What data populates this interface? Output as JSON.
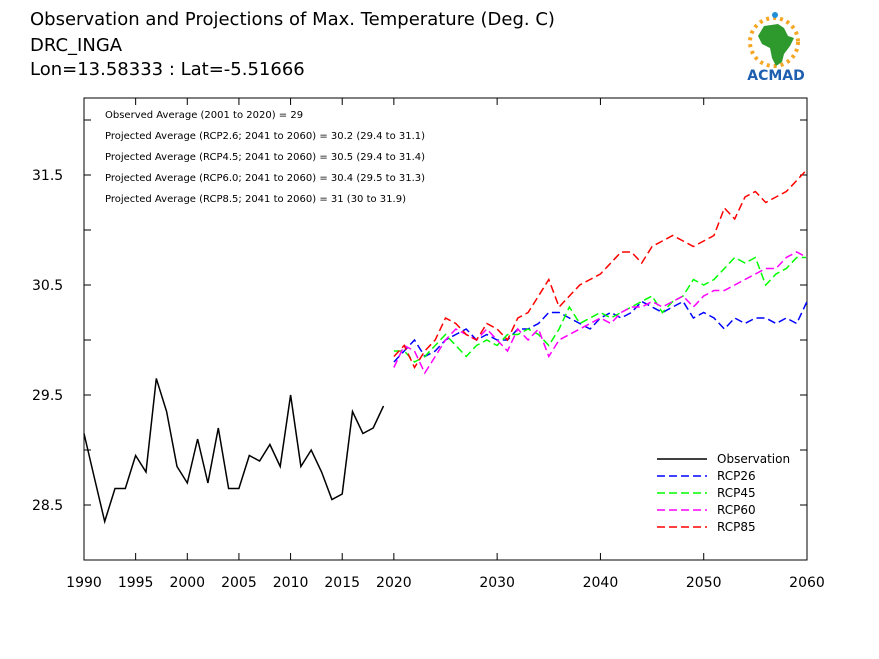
{
  "header": {
    "title": "Observation and Projections of Max. Temperature (Deg. C)",
    "station": "DRC_INGA",
    "coords": "Lon=13.58333 : Lat=-5.51666"
  },
  "logo": {
    "text": "ACMAD",
    "icon": "africa-map-sun-logo",
    "colors": {
      "land": "#2e9a2e",
      "sun": "#f5a623",
      "text": "#1f5fb0"
    }
  },
  "annotations": [
    "Observed Average (2001 to 2020) = 29",
    "Projected Average (RCP2.6; 2041 to 2060) = 30.2 (29.4 to 31.1)",
    "Projected Average (RCP4.5; 2041 to 2060) = 30.5 (29.4 to 31.4)",
    "Projected Average (RCP6.0; 2041 to 2060) = 30.4 (29.5 to 31.3)",
    "Projected Average (RCP8.5; 2041 to 2060) = 31 (30 to 31.9)"
  ],
  "chart_data": {
    "type": "line",
    "xlim": [
      1990,
      2060
    ],
    "ylim": [
      28.0,
      32.2
    ],
    "x_ticks": [
      "1990",
      "1995",
      "2000",
      "2005",
      "2010",
      "2015",
      "2020",
      "2030",
      "2040",
      "2050",
      "2060"
    ],
    "x_tick_values": [
      1990,
      1995,
      2000,
      2005,
      2010,
      2015,
      2020,
      2030,
      2040,
      2050,
      2060
    ],
    "y_ticks": [
      "28.5",
      "29.5",
      "30.5",
      "31.5"
    ],
    "y_tick_values": [
      28.5,
      29.5,
      30.5,
      31.5
    ],
    "series": [
      {
        "name": "Observation",
        "color": "#000000",
        "dashed": false,
        "x": [
          1990,
          1991,
          1992,
          1993,
          1994,
          1995,
          1996,
          1997,
          1998,
          1999,
          2000,
          2001,
          2002,
          2003,
          2004,
          2005,
          2006,
          2007,
          2008,
          2009,
          2010,
          2011,
          2012,
          2013,
          2014,
          2015,
          2016,
          2017,
          2018,
          2019
        ],
        "y": [
          29.15,
          28.75,
          28.35,
          28.65,
          28.65,
          28.95,
          28.8,
          29.65,
          29.35,
          28.85,
          28.7,
          29.1,
          28.7,
          29.2,
          28.65,
          28.65,
          28.95,
          28.9,
          29.05,
          28.85,
          29.5,
          28.85,
          29.0,
          28.8,
          28.55,
          28.6,
          29.35,
          29.15,
          29.2,
          29.4
        ]
      },
      {
        "name": "RCP26",
        "color": "#0000ff",
        "dashed": true,
        "x": [
          2020,
          2021,
          2022,
          2023,
          2024,
          2025,
          2026,
          2027,
          2028,
          2029,
          2030,
          2031,
          2032,
          2033,
          2034,
          2035,
          2036,
          2037,
          2038,
          2039,
          2040,
          2041,
          2042,
          2043,
          2044,
          2045,
          2046,
          2047,
          2048,
          2049,
          2050,
          2051,
          2052,
          2053,
          2054,
          2055,
          2056,
          2057,
          2058,
          2059,
          2060
        ],
        "y": [
          29.8,
          29.9,
          30.0,
          29.85,
          29.9,
          30.0,
          30.05,
          30.1,
          30.0,
          30.05,
          30.0,
          30.0,
          30.1,
          30.1,
          30.15,
          30.25,
          30.25,
          30.2,
          30.15,
          30.1,
          30.2,
          30.25,
          30.2,
          30.25,
          30.35,
          30.3,
          30.25,
          30.3,
          30.35,
          30.2,
          30.25,
          30.2,
          30.1,
          30.2,
          30.15,
          30.2,
          30.2,
          30.15,
          30.2,
          30.15,
          30.35
        ]
      },
      {
        "name": "RCP45",
        "color": "#00ff00",
        "dashed": true,
        "x": [
          2020,
          2021,
          2022,
          2023,
          2024,
          2025,
          2026,
          2027,
          2028,
          2029,
          2030,
          2031,
          2032,
          2033,
          2034,
          2035,
          2036,
          2037,
          2038,
          2039,
          2040,
          2041,
          2042,
          2043,
          2044,
          2045,
          2046,
          2047,
          2048,
          2049,
          2050,
          2051,
          2052,
          2053,
          2054,
          2055,
          2056,
          2057,
          2058,
          2059,
          2060
        ],
        "y": [
          29.9,
          29.9,
          29.8,
          29.85,
          29.95,
          30.05,
          29.95,
          29.85,
          29.95,
          30.0,
          29.95,
          30.05,
          30.05,
          30.1,
          30.05,
          29.95,
          30.1,
          30.3,
          30.15,
          30.2,
          30.25,
          30.2,
          30.25,
          30.3,
          30.35,
          30.4,
          30.25,
          30.35,
          30.4,
          30.55,
          30.5,
          30.55,
          30.65,
          30.75,
          30.7,
          30.75,
          30.5,
          30.6,
          30.65,
          30.75,
          30.75
        ]
      },
      {
        "name": "RCP60",
        "color": "#ff00ff",
        "dashed": true,
        "x": [
          2020,
          2021,
          2022,
          2023,
          2024,
          2025,
          2026,
          2027,
          2028,
          2029,
          2030,
          2031,
          2032,
          2033,
          2034,
          2035,
          2036,
          2037,
          2038,
          2039,
          2040,
          2041,
          2042,
          2043,
          2044,
          2045,
          2046,
          2047,
          2048,
          2049,
          2050,
          2051,
          2052,
          2053,
          2054,
          2055,
          2056,
          2057,
          2058,
          2059,
          2060
        ],
        "y": [
          29.75,
          29.95,
          29.9,
          29.7,
          29.85,
          30.0,
          30.1,
          30.05,
          30.0,
          30.1,
          30.0,
          29.9,
          30.1,
          30.0,
          30.1,
          29.85,
          30.0,
          30.05,
          30.1,
          30.15,
          30.2,
          30.15,
          30.25,
          30.3,
          30.3,
          30.35,
          30.3,
          30.35,
          30.4,
          30.3,
          30.4,
          30.45,
          30.45,
          30.5,
          30.55,
          30.6,
          30.65,
          30.65,
          30.75,
          30.8,
          30.75
        ]
      },
      {
        "name": "RCP85",
        "color": "#ff0000",
        "dashed": true,
        "x": [
          2020,
          2021,
          2022,
          2023,
          2024,
          2025,
          2026,
          2027,
          2028,
          2029,
          2030,
          2031,
          2032,
          2033,
          2034,
          2035,
          2036,
          2037,
          2038,
          2039,
          2040,
          2041,
          2042,
          2043,
          2044,
          2045,
          2046,
          2047,
          2048,
          2049,
          2050,
          2051,
          2052,
          2053,
          2054,
          2055,
          2056,
          2057,
          2058,
          2059,
          2060
        ],
        "y": [
          29.85,
          29.95,
          29.75,
          29.9,
          30.0,
          30.2,
          30.15,
          30.05,
          30.0,
          30.15,
          30.1,
          30.0,
          30.2,
          30.25,
          30.4,
          30.55,
          30.3,
          30.4,
          30.5,
          30.55,
          30.6,
          30.7,
          30.8,
          30.8,
          30.7,
          30.85,
          30.9,
          30.95,
          30.9,
          30.85,
          30.9,
          30.95,
          31.2,
          31.1,
          31.3,
          31.35,
          31.25,
          31.3,
          31.35,
          31.45,
          31.55
        ]
      }
    ],
    "legend_position": "bottom-right"
  }
}
